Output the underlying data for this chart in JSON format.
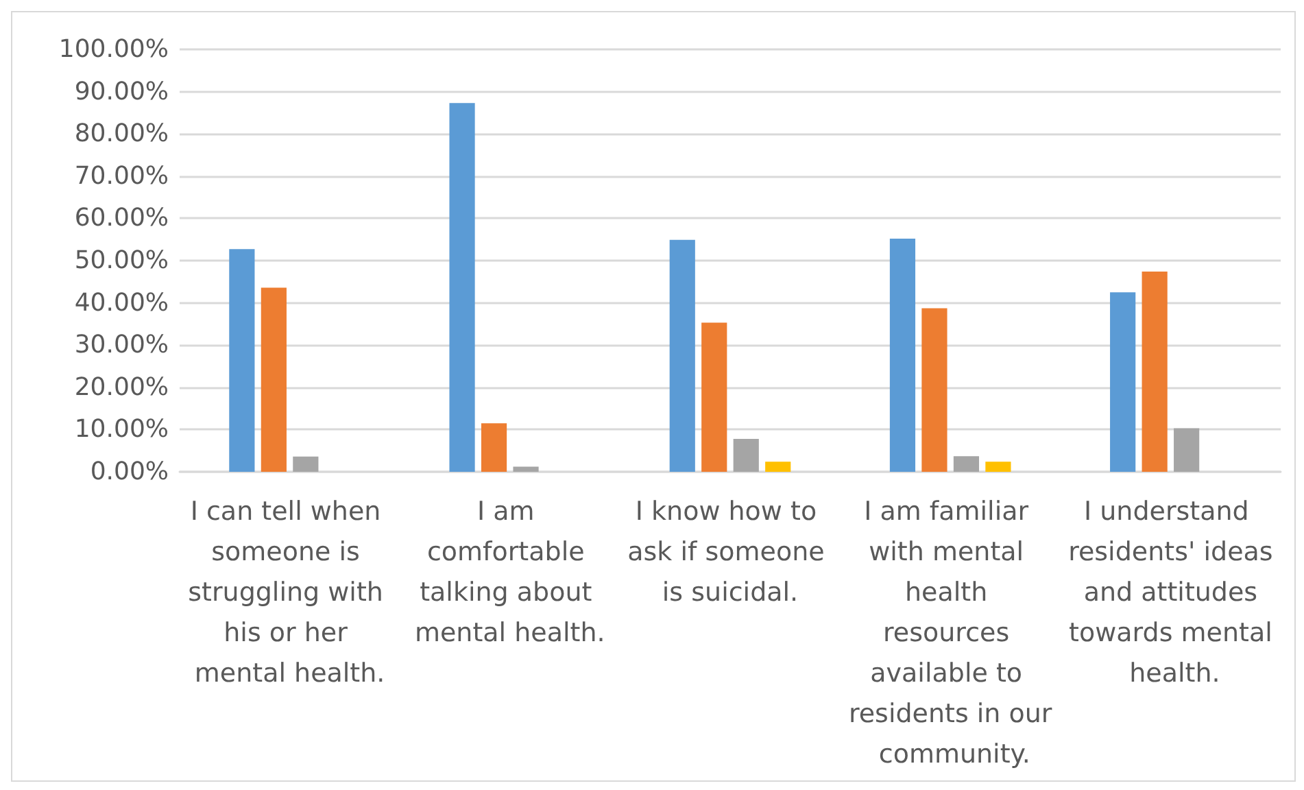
{
  "chart_data": {
    "type": "bar",
    "categories": [
      "I can tell when someone is struggling with his or her mental health.",
      "I am comfortable talking about mental health.",
      "I know how to ask if someone is suicidal.",
      "I am familiar with mental health resources available to residents in our community.",
      "I understand residents' ideas and attitudes towards mental health."
    ],
    "series": [
      {
        "color": "#5b9bd5",
        "values": [
          52.7,
          87.3,
          54.9,
          55.2,
          42.5
        ]
      },
      {
        "color": "#ed7d31",
        "values": [
          43.6,
          11.5,
          35.3,
          38.7,
          47.4
        ]
      },
      {
        "color": "#a5a5a5",
        "values": [
          3.6,
          1.2,
          7.8,
          3.7,
          10.3
        ]
      },
      {
        "color": "#ffc000",
        "values": [
          0,
          0,
          2.4,
          2.4,
          0
        ]
      }
    ],
    "ylim": [
      0,
      100
    ],
    "yticks": [
      {
        "value": 0,
        "label": "0.00%"
      },
      {
        "value": 10,
        "label": "10.00%"
      },
      {
        "value": 20,
        "label": "20.00%"
      },
      {
        "value": 30,
        "label": "30.00%"
      },
      {
        "value": 40,
        "label": "40.00%"
      },
      {
        "value": 50,
        "label": "50.00%"
      },
      {
        "value": 60,
        "label": "60.00%"
      },
      {
        "value": 70,
        "label": "70.00%"
      },
      {
        "value": 80,
        "label": "80.00%"
      },
      {
        "value": 90,
        "label": "90.00%"
      },
      {
        "value": 100,
        "label": "100.00%"
      }
    ],
    "grid": "y"
  }
}
